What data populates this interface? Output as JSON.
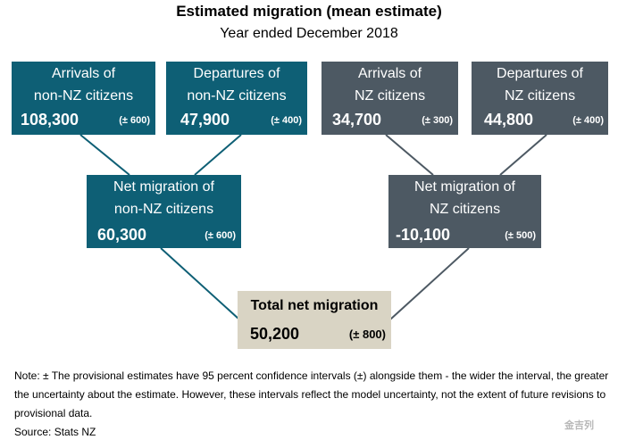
{
  "title": "Estimated migration (mean estimate)",
  "subtitle": "Year ended December 2018",
  "boxes": {
    "arrivals_non_nz": {
      "line1": "Arrivals of",
      "line2": "non-NZ citizens",
      "value": "108,300",
      "ci": "(± 600)"
    },
    "departures_non_nz": {
      "line1": "Departures of",
      "line2": "non-NZ citizens",
      "value": "47,900",
      "ci": "(± 400)"
    },
    "arrivals_nz": {
      "line1": "Arrivals of",
      "line2": "NZ citizens",
      "value": "34,700",
      "ci": "(± 300)"
    },
    "departures_nz": {
      "line1": "Departures of",
      "line2": "NZ citizens",
      "value": "44,800",
      "ci": "(± 400)"
    },
    "net_non_nz": {
      "line1": "Net migration of",
      "line2": "non-NZ citizens",
      "value": "60,300",
      "ci": "(± 600)"
    },
    "net_nz": {
      "line1": "Net migration of",
      "line2": "NZ citizens",
      "value": "-10,100",
      "ci": "(± 500)"
    },
    "total": {
      "line1": "Total net migration",
      "value": "50,200",
      "ci": "(± 800)"
    }
  },
  "note": "Note: ± The provisional estimates have 95 percent confidence intervals (±) alongside them - the wider the interval, the greater the uncertainty about the estimate. However, these intervals reflect the model uncertainty, not the extent of future revisions to provisional data.",
  "source": "Source: Stats NZ",
  "watermark": "金吉列",
  "colors": {
    "teal": "#0e5f75",
    "grey": "#4d5963",
    "beige": "#d9d4c4",
    "connector_teal": "#0e5f75",
    "connector_grey": "#4d5963"
  }
}
